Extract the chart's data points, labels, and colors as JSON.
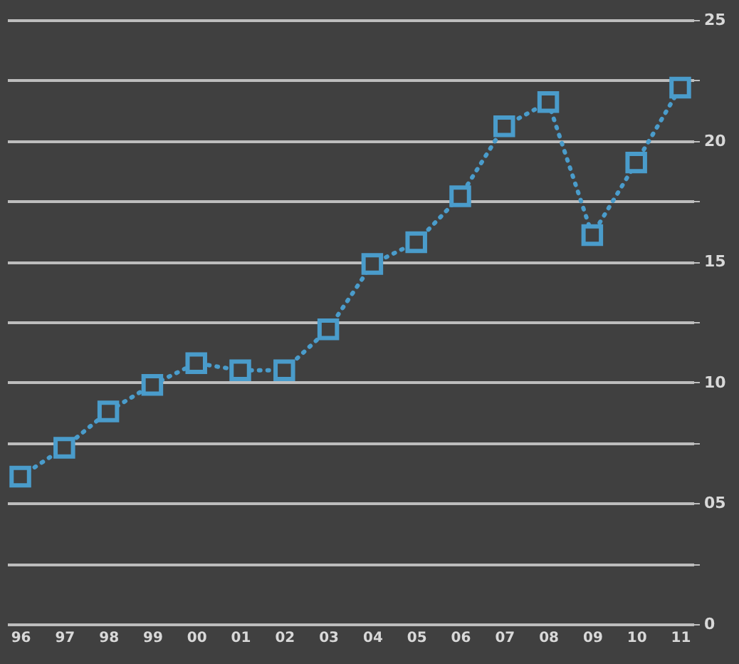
{
  "chart_data": {
    "type": "line",
    "categories": [
      "96",
      "97",
      "98",
      "99",
      "00",
      "01",
      "02",
      "03",
      "04",
      "05",
      "06",
      "07",
      "08",
      "09",
      "10",
      "11"
    ],
    "series": [
      {
        "color": "#4a9ccb",
        "values": [
          6.1,
          7.3,
          8.8,
          9.9,
          10.8,
          10.5,
          10.5,
          12.2,
          14.9,
          15.8,
          17.7,
          20.6,
          21.6,
          16.1,
          19.1,
          22.2
        ]
      }
    ],
    "ylim": [
      0,
      25
    ],
    "yticks": [
      0,
      {
        "value": 2.5,
        "label": null
      },
      {
        "value": 5,
        "label": "05"
      },
      {
        "value": 7.5,
        "label": null
      },
      10,
      {
        "value": 12.5,
        "label": null
      },
      15,
      {
        "value": 17.5,
        "label": null
      },
      20,
      {
        "value": 22.5,
        "label": null
      },
      25
    ],
    "grid": "y",
    "legend": false,
    "marker": "square",
    "line_style": "dotted"
  }
}
